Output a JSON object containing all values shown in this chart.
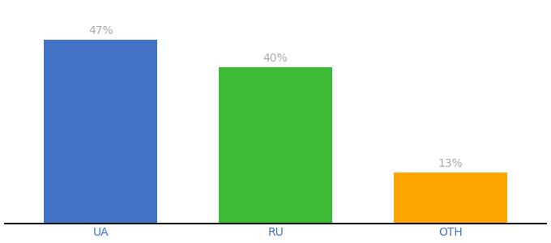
{
  "categories": [
    "UA",
    "RU",
    "OTH"
  ],
  "values": [
    47,
    40,
    13
  ],
  "bar_colors": [
    "#4472c4",
    "#3dbb35",
    "#ffa500"
  ],
  "label_color": "#aaaaaa",
  "axis_label_color": "#4472c4",
  "label_fontsize": 10,
  "tick_fontsize": 10,
  "ylim": [
    0,
    56
  ],
  "background_color": "#ffffff",
  "bar_width": 0.65,
  "xlim": [
    -0.55,
    2.55
  ]
}
